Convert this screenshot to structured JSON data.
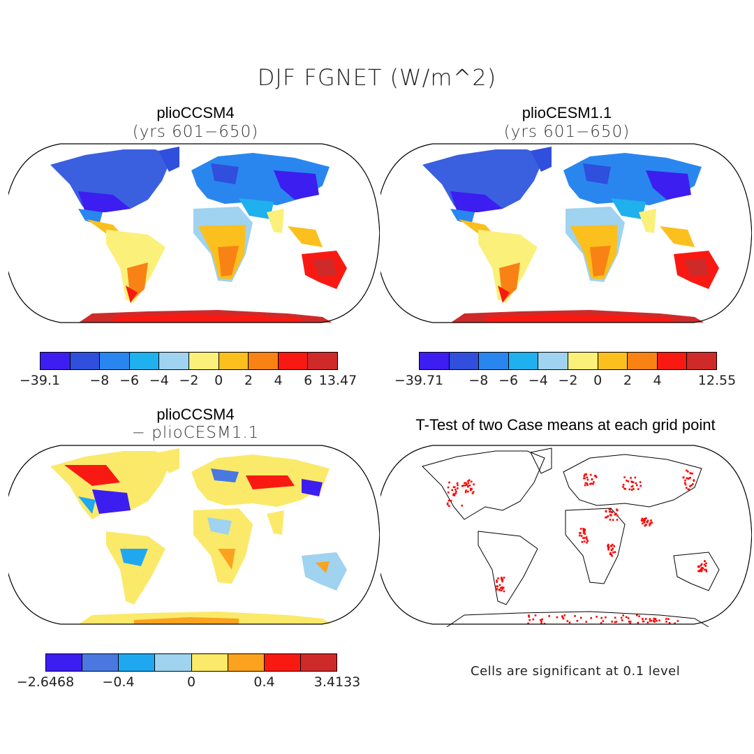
{
  "title": "DJF FGNET (W/m^2)",
  "panels": [
    {
      "title": "plioCCSM4",
      "subtitle": "(yrs 601−650)",
      "colorbar": {
        "colors": [
          "#3c1ef0",
          "#2f4fdc",
          "#2a86ef",
          "#1fb0ee",
          "#9fd3ef",
          "#fbf07a",
          "#fbbf1e",
          "#f98214",
          "#f81a12",
          "#cf2a2a"
        ],
        "labels": [
          "−39.1",
          "",
          "−8",
          "−6",
          "−4",
          "−2",
          "0",
          "2",
          "4",
          "6",
          "13.47"
        ]
      }
    },
    {
      "title": "plioCESM1.1",
      "subtitle": "(yrs 601−650)",
      "colorbar": {
        "colors": [
          "#3c1ef0",
          "#2f4fdc",
          "#2a86ef",
          "#1fb0ee",
          "#9fd3ef",
          "#fbf07a",
          "#fbbf1e",
          "#f98214",
          "#f81a12",
          "#cf2a2a"
        ],
        "labels": [
          "−39.71",
          "",
          "−8",
          "−6",
          "−4",
          "−2",
          "0",
          "2",
          "4",
          "",
          "12.55"
        ]
      }
    },
    {
      "title": "plioCCSM4",
      "subtitle": "− plioCESM1.1",
      "colorbar": {
        "colors": [
          "#3c1ef0",
          "#4a78e0",
          "#1fa8ef",
          "#9fd3ef",
          "#fbe96a",
          "#fba21e",
          "#f81a12",
          "#cf2a2a"
        ],
        "labels": [
          "−2.6468",
          "",
          "−0.4",
          "",
          "0",
          "",
          "0.4",
          "",
          "3.4133"
        ]
      }
    },
    {
      "title": "T-Test of two Case means at each grid point",
      "subtitle": "",
      "note": "Cells are significant at 0.1 level",
      "marker_color": "#ff0000"
    }
  ]
}
